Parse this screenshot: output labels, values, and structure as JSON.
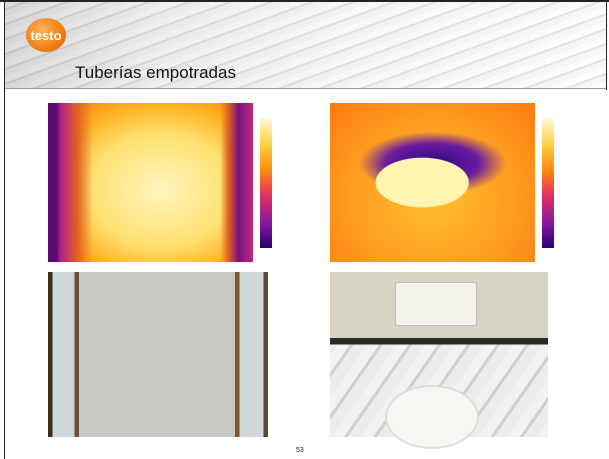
{
  "header": {
    "logo": "testo",
    "title": "Tuberías empotradas"
  },
  "footer": {
    "page_number": "53"
  }
}
